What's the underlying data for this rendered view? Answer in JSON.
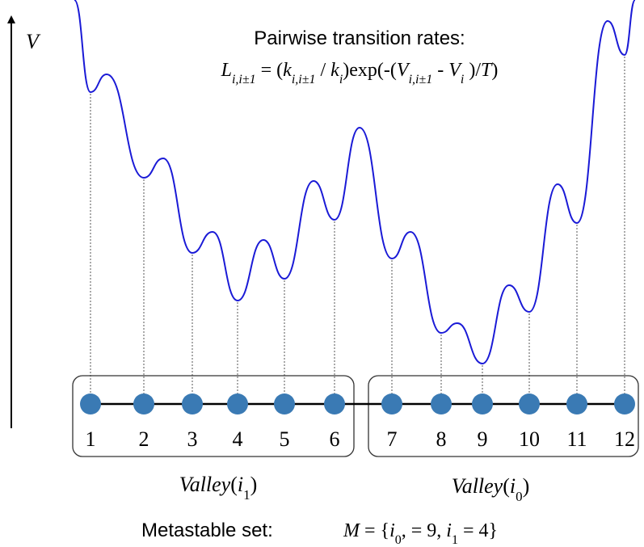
{
  "axis": {
    "label": "V"
  },
  "title": {
    "line1": "Pairwise transition rates:",
    "formula": [
      {
        "t": "L",
        "i": true
      },
      {
        "t": "i,i±1",
        "i": true,
        "sub": true
      },
      {
        "t": " = ("
      },
      {
        "t": "k",
        "i": true
      },
      {
        "t": "i,i±1",
        "i": true,
        "sub": true
      },
      {
        "t": " / "
      },
      {
        "t": "k",
        "i": true
      },
      {
        "t": "i",
        "i": true,
        "sub": true
      },
      {
        "t": ")exp(-("
      },
      {
        "t": "V",
        "i": true
      },
      {
        "t": "i,i±1",
        "i": true,
        "sub": true
      },
      {
        "t": " - "
      },
      {
        "t": "V",
        "i": true
      },
      {
        "t": "i",
        "i": true,
        "sub": true
      },
      {
        "t": " )/"
      },
      {
        "t": "T",
        "i": true
      },
      {
        "t": ")"
      }
    ]
  },
  "states": [
    "1",
    "2",
    "3",
    "4",
    "5",
    "6",
    "7",
    "8",
    "9",
    "10",
    "11",
    "12"
  ],
  "valleys": [
    {
      "word": "Valley",
      "sym": "i",
      "sub": "1"
    },
    {
      "word": "Valley",
      "sym": "i",
      "sub": "0"
    }
  ],
  "footer": {
    "label": "Metastable set:",
    "formula": [
      {
        "t": "M",
        "i": true
      },
      {
        "t": " = {"
      },
      {
        "t": "i",
        "i": true
      },
      {
        "t": "0",
        "sub": true
      },
      {
        "t": ", = 9, "
      },
      {
        "t": "i",
        "i": true
      },
      {
        "t": "1",
        "sub": true
      },
      {
        "t": " = 4}"
      }
    ]
  },
  "colors": {
    "curve": "#1a1ad6",
    "node": "#3a7ab4",
    "line": "#000000",
    "dotted": "#555555",
    "box": "#333333"
  }
}
